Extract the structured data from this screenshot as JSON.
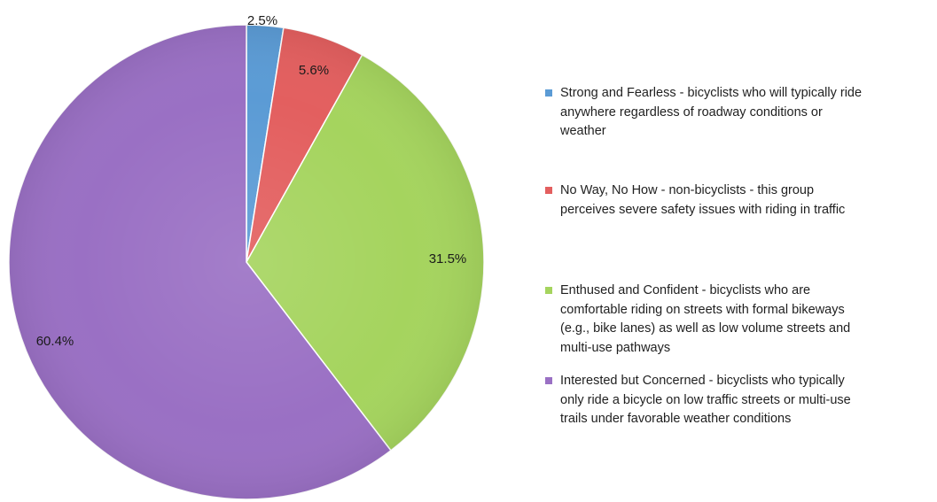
{
  "chart_data": {
    "type": "pie",
    "start": "12 o'clock, clockwise",
    "slices": [
      {
        "label": "Strong and Fearless - bicyclists who will typically ride anywhere regardless of roadway conditions or weather",
        "label_lines": "Strong and Fearless - bicyclists who will typically ride\nanywhere regardless of roadway conditions or\nweather",
        "value": 2.5,
        "value_label": "2.5%",
        "color": "#5b9bd5"
      },
      {
        "label": "No Way, No How - non-bicyclists - this group perceives severe safety issues with riding in traffic",
        "label_lines": "No Way, No How - non-bicyclists - this group\nperceives severe safety issues with riding in traffic",
        "value": 5.6,
        "value_label": "5.6%",
        "color": "#e35f5f"
      },
      {
        "label": "Enthused and Confident - bicyclists who are comfortable riding on streets with formal bikeways (e.g., bike lanes) as well as low volume streets and multi-use pathways",
        "label_lines": "Enthused and Confident - bicyclists who are\ncomfortable riding on streets with formal bikeways\n(e.g., bike lanes) as well as low volume streets and\nmulti-use pathways",
        "value": 31.5,
        "value_label": "31.5%",
        "color": "#a5d45e"
      },
      {
        "label": "Interested but Concerned - bicyclists who typically only ride a bicycle on low traffic streets or multi-use trails under favorable weather conditions",
        "label_lines": "Interested but Concerned - bicyclists who typically\nonly ride a bicycle on low traffic streets or multi-use\ntrails under favorable weather conditions",
        "value": 60.4,
        "value_label": "60.4%",
        "color": "#9a70c4"
      }
    ],
    "legend_position": "right"
  }
}
